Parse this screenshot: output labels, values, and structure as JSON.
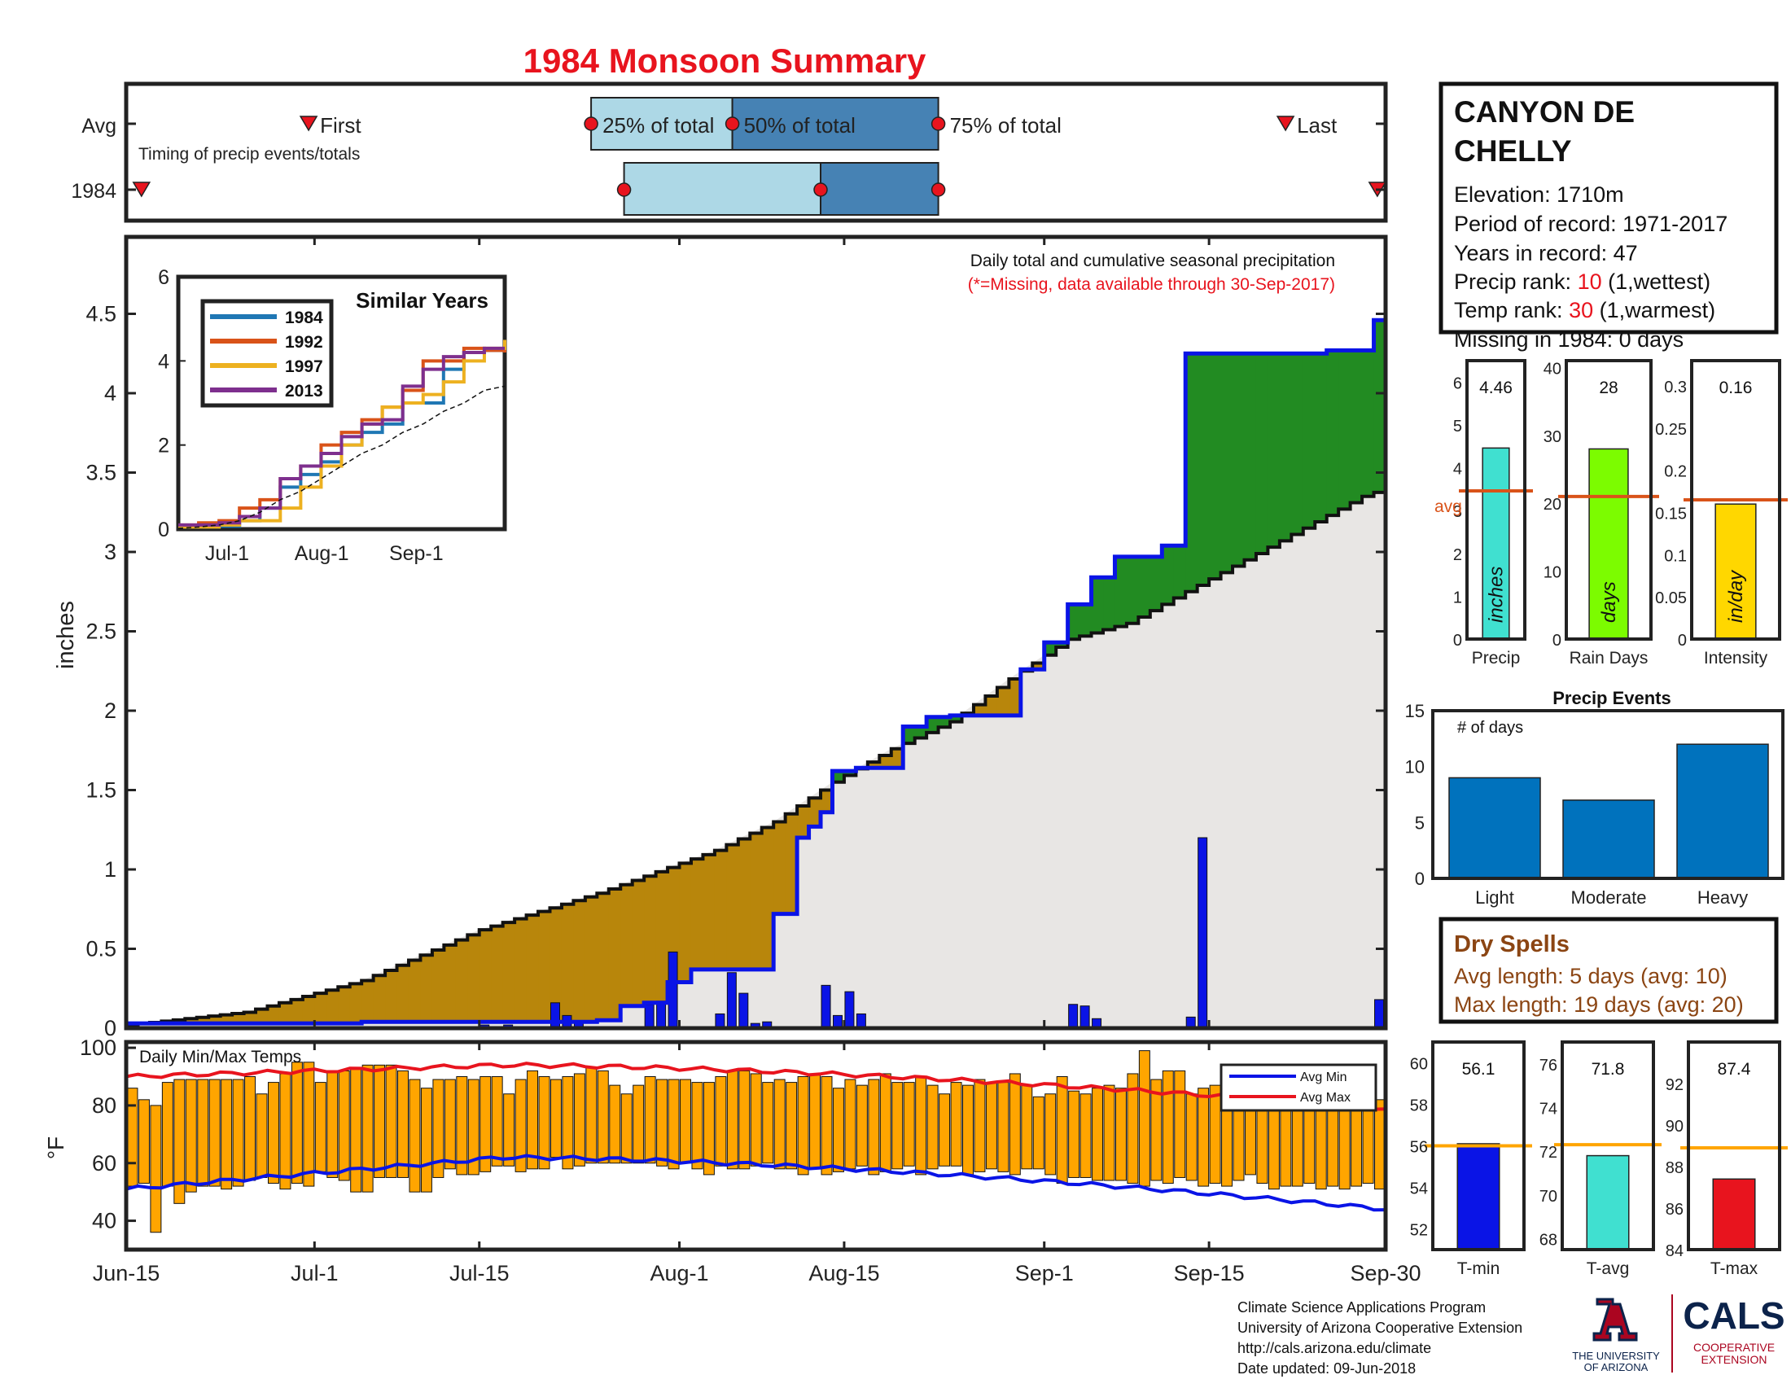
{
  "title": "1984 Monsoon Summary",
  "timing": {
    "row_avg": "Avg",
    "row_year": "1984",
    "subtitle": "Timing of precip events/totals",
    "first": "First",
    "q25": "25% of total",
    "q50": "50% of total",
    "q75": "75% of total",
    "last": "Last",
    "avg_days": {
      "first": 15.5,
      "q25": 39.5,
      "q50": 51.5,
      "q75": 69,
      "last": 98.5
    },
    "year_days": {
      "first": 1.3,
      "q25": 42.3,
      "q50": 59,
      "q75": 69,
      "last": 106.3
    }
  },
  "main": {
    "ylabel": "inches",
    "note1": "Daily total and cumulative seasonal precipitation",
    "note2": "(*=Missing, data available through 30-Sep-2017)",
    "yticks": [
      "0",
      "0.5",
      "1",
      "1.5",
      "2",
      "2.5",
      "3",
      "3.5",
      "4",
      "4.5"
    ],
    "xticks": [
      "Jun-15",
      "Jul-1",
      "Jul-15",
      "Aug-1",
      "Aug-15",
      "Sep-1",
      "Sep-15",
      "Sep-30"
    ]
  },
  "temps": {
    "label": "Daily Min/Max Temps",
    "ylabel": "°F",
    "yticks": [
      "40",
      "60",
      "80",
      "100"
    ],
    "legend_min": "Avg Min",
    "legend_max": "Avg Max"
  },
  "similar": {
    "title": "Similar Years",
    "yticks": [
      "0",
      "2",
      "4",
      "6"
    ],
    "xticks": [
      "Jul-1",
      "Aug-1",
      "Sep-1"
    ],
    "years": [
      "1984",
      "1992",
      "1997",
      "2013"
    ],
    "colors": [
      "#1f77b4",
      "#d95319",
      "#edb120",
      "#7e2f8e"
    ]
  },
  "station": {
    "name1": "CANYON DE",
    "name2": "CHELLY",
    "elevation": "Elevation: 1710m",
    "period": "Period of record: 1971-2017",
    "years": "Years in record: 47",
    "precip_rank_label": "Precip rank: ",
    "precip_rank": "10",
    "precip_rank_note": " (1,wettest)",
    "temp_rank_label": "Temp rank: ",
    "temp_rank": "30",
    "temp_rank_note": " (1,warmest)",
    "missing": "Missing in 1984: 0 days"
  },
  "stats": {
    "precip": {
      "value": "4.46",
      "label": "Precip",
      "unit": "inches",
      "yticks": [
        "0",
        "1",
        "2",
        "3",
        "4",
        "5",
        "6"
      ],
      "avg_label": "avg"
    },
    "raindays": {
      "value": "28",
      "label": "Rain Days",
      "unit": "days",
      "yticks": [
        "0",
        "10",
        "20",
        "30",
        "40"
      ]
    },
    "intensity": {
      "value": "0.16",
      "label": "Intensity",
      "unit": "in/day",
      "yticks": [
        "0",
        "0.05",
        "0.1",
        "0.15",
        "0.2",
        "0.25",
        "0.3"
      ]
    }
  },
  "events": {
    "title": "Precip Events",
    "ylabel": "# of days",
    "yticks": [
      "0",
      "5",
      "10",
      "15"
    ],
    "categories": [
      "Light",
      "Moderate",
      "Heavy"
    ],
    "values": [
      9,
      7,
      12
    ]
  },
  "dry": {
    "title": "Dry Spells",
    "avg": "Avg length: 5 days (avg: 10)",
    "max": "Max length: 19 days (avg: 20)"
  },
  "tstats": {
    "tmin": {
      "value": "56.1",
      "label": "T-min",
      "yticks": [
        "52",
        "54",
        "56",
        "58",
        "60"
      ]
    },
    "tavg": {
      "value": "71.8",
      "label": "T-avg",
      "yticks": [
        "68",
        "70",
        "72",
        "74",
        "76"
      ]
    },
    "tmax": {
      "value": "87.4",
      "label": "T-max",
      "yticks": [
        "84",
        "86",
        "88",
        "90",
        "92"
      ]
    }
  },
  "footer": {
    "line1": "Climate Science Applications Program",
    "line2": "University of Arizona Cooperative Extension",
    "line3": "http://cals.arizona.edu/climate",
    "line4": " Date updated: 09-Jun-2018",
    "ua1": "THE UNIVERSITY",
    "ua2": "OF ARIZONA",
    "cals": "CALS",
    "coop1": "COOPERATIVE",
    "coop2": "EXTENSION"
  },
  "chart_data": [
    {
      "type": "area",
      "title": "Daily total and cumulative seasonal precipitation",
      "xlabel": "",
      "ylabel": "inches",
      "ylim": [
        0,
        5
      ],
      "x_range": [
        "Jun-15",
        "Sep-30"
      ],
      "series": [
        {
          "name": "1984 cumulative",
          "x_day": [
            0,
            20,
            40,
            42,
            44,
            46,
            48,
            55,
            57,
            58,
            59,
            60,
            62,
            64,
            66,
            68,
            69,
            70,
            72,
            74,
            76,
            78,
            80,
            82,
            84,
            86,
            88,
            90,
            92,
            94,
            96,
            98,
            100,
            102,
            104,
            106,
            107
          ],
          "values": [
            0.03,
            0.04,
            0.05,
            0.14,
            0.16,
            0.29,
            0.37,
            0.72,
            1.2,
            1.27,
            1.36,
            1.62,
            1.64,
            1.64,
            1.9,
            1.96,
            1.96,
            1.97,
            1.97,
            1.97,
            2.26,
            2.43,
            2.67,
            2.84,
            2.97,
            2.97,
            3.04,
            4.25,
            4.25,
            4.25,
            4.25,
            4.25,
            4.25,
            4.27,
            4.27,
            4.46,
            4.47
          ]
        },
        {
          "name": "Avg cumulative",
          "x_day": [
            0,
            10,
            20,
            30,
            40,
            50,
            55,
            60,
            65,
            70,
            75,
            80,
            85,
            90,
            95,
            100,
            105,
            107
          ],
          "values": [
            0.02,
            0.1,
            0.3,
            0.62,
            0.85,
            1.12,
            1.3,
            1.55,
            1.76,
            1.93,
            2.2,
            2.45,
            2.55,
            2.75,
            2.95,
            3.15,
            3.35,
            3.4
          ]
        },
        {
          "name": "Daily precip",
          "x_day": [
            20,
            21,
            27,
            28,
            29,
            30,
            31,
            32,
            36,
            37,
            38,
            44,
            45,
            46,
            50,
            51,
            52,
            53,
            54,
            59,
            60,
            61,
            62,
            80,
            81,
            82,
            90,
            91,
            106
          ],
          "values": [
            0.01,
            0.01,
            0.01,
            0.01,
            0.01,
            0.02,
            0.01,
            0.02,
            0.16,
            0.08,
            0.04,
            0.15,
            0.17,
            0.48,
            0.09,
            0.35,
            0.22,
            0.03,
            0.04,
            0.27,
            0.08,
            0.23,
            0.09,
            0.15,
            0.14,
            0.06,
            0.07,
            1.2,
            0.18
          ]
        }
      ]
    },
    {
      "type": "line",
      "title": "Similar Years",
      "ylim": [
        0,
        6
      ],
      "x_range": [
        "Jun-15",
        "Sep-30"
      ],
      "series": [
        {
          "name": "1984",
          "values": [
            0.05,
            0.05,
            0.07,
            0.2,
            0.5,
            1.0,
            1.3,
            1.6,
            2.0,
            2.3,
            2.5,
            3.0,
            3.0,
            3.8,
            4.2,
            4.25,
            4.3
          ]
        },
        {
          "name": "1992",
          "values": [
            0.1,
            0.15,
            0.2,
            0.5,
            0.7,
            1.2,
            1.5,
            2.0,
            2.3,
            2.6,
            2.9,
            3.3,
            4.0,
            4.0,
            4.3,
            4.25,
            4.2
          ]
        },
        {
          "name": "1997",
          "values": [
            0.05,
            0.05,
            0.1,
            0.2,
            0.2,
            0.5,
            1.0,
            1.5,
            2.0,
            2.5,
            2.9,
            3.0,
            3.2,
            3.5,
            4.0,
            4.3,
            4.5
          ]
        },
        {
          "name": "2013",
          "values": [
            0.1,
            0.1,
            0.15,
            0.3,
            0.5,
            1.2,
            1.5,
            1.8,
            2.2,
            2.5,
            2.6,
            3.4,
            3.8,
            4.1,
            4.2,
            4.3,
            4.3
          ]
        },
        {
          "name": "Avg",
          "values": [
            0.02,
            0.05,
            0.1,
            0.2,
            0.4,
            0.7,
            0.9,
            1.2,
            1.5,
            1.8,
            2.0,
            2.3,
            2.5,
            2.8,
            3.0,
            3.3,
            3.4
          ]
        }
      ]
    },
    {
      "type": "bar",
      "title": "Daily Min/Max Temps",
      "ylabel": "°F",
      "ylim": [
        30,
        102
      ],
      "tmax": [
        86,
        82,
        80,
        88,
        89,
        89,
        89,
        89,
        89,
        89,
        90,
        84,
        88,
        91,
        95,
        95,
        88,
        92,
        92,
        93,
        94,
        94,
        94,
        92,
        89,
        86,
        89,
        89,
        90,
        89,
        90,
        90,
        84,
        89,
        92,
        90,
        89,
        90,
        91,
        93,
        92,
        87,
        84,
        87,
        90,
        89,
        89,
        89,
        88,
        88,
        90,
        92,
        92,
        91,
        88,
        89,
        88,
        90,
        91,
        90,
        86,
        89,
        87,
        89,
        91,
        88,
        88,
        90,
        87,
        84,
        88,
        87,
        89,
        88,
        88,
        91,
        87,
        83,
        84,
        90,
        85,
        84,
        86,
        87,
        86,
        91,
        99,
        89,
        92,
        92,
        84,
        86,
        87,
        89,
        88,
        88,
        87,
        89,
        89,
        85,
        86,
        88,
        84,
        85,
        82,
        80,
        82
      ],
      "tmin": [
        52,
        53,
        36,
        52,
        46,
        50,
        52,
        52,
        51,
        52,
        54,
        55,
        53,
        51,
        53,
        52,
        57,
        55,
        54,
        50,
        50,
        55,
        55,
        55,
        50,
        50,
        55,
        58,
        56,
        56,
        57,
        59,
        59,
        57,
        58,
        58,
        62,
        58,
        59,
        60,
        60,
        60,
        60,
        60,
        60,
        59,
        58,
        60,
        58,
        56,
        59,
        58,
        58,
        59,
        60,
        58,
        58,
        56,
        58,
        56,
        57,
        58,
        59,
        56,
        57,
        58,
        59,
        56,
        58,
        59,
        59,
        56,
        57,
        58,
        57,
        56,
        58,
        58,
        56,
        53,
        55,
        55,
        54,
        54,
        54,
        53,
        52,
        54,
        53,
        55,
        54,
        52,
        53,
        52,
        54,
        56,
        53,
        51,
        52,
        52,
        53,
        51,
        52,
        51,
        52,
        53,
        51
      ],
      "avg_min_range": [
        51,
        62,
        44
      ],
      "avg_max_range": [
        90,
        94,
        79
      ]
    },
    {
      "type": "bar",
      "title": "Precip Events",
      "categories": [
        "Light",
        "Moderate",
        "Heavy"
      ],
      "values": [
        9,
        7,
        12
      ],
      "ylim": [
        0,
        15
      ]
    },
    {
      "type": "bar",
      "categories": [
        "Precip",
        "Rain Days",
        "Intensity"
      ],
      "values": [
        4.46,
        28,
        0.16
      ],
      "avg": [
        3.46,
        21,
        0.165
      ]
    },
    {
      "type": "bar",
      "categories": [
        "T-min",
        "T-avg",
        "T-max"
      ],
      "values": [
        56.1,
        71.8,
        87.4
      ],
      "avg": [
        56,
        72.3,
        88.9
      ]
    }
  ]
}
